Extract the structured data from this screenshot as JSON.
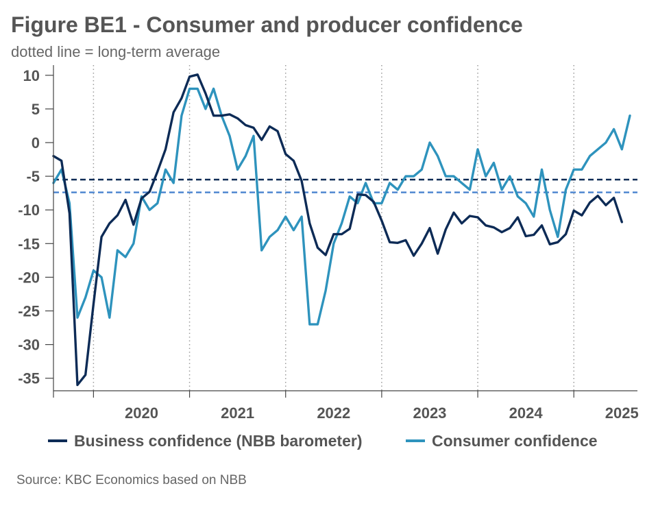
{
  "header": {
    "title": "Figure BE1 - Consumer and producer confidence",
    "subtitle": "dotted line = long-term average"
  },
  "footer": {
    "source": "Source: KBC Economics based on NBB"
  },
  "colors": {
    "business": "#0d2b56",
    "consumer": "#2e93bd",
    "business_avg": "#0d2b56",
    "consumer_avg": "#4f87d0",
    "axis": "#444444",
    "year_grid": "#999999"
  },
  "chart_data": {
    "type": "line",
    "title": "Figure BE1 - Consumer and producer confidence",
    "subtitle": "dotted line = long-term average",
    "x_axis_type": "monthly",
    "x_start": "2019-08",
    "x_end": "2025-10",
    "ylim": [
      -37,
      11
    ],
    "yticks": [
      10,
      5,
      0,
      -5,
      -10,
      -15,
      -20,
      -25,
      -30,
      -35
    ],
    "year_labels": [
      "2020",
      "2021",
      "2022",
      "2023",
      "2024",
      "2025"
    ],
    "grid": "vertical dotted lines at year boundaries",
    "legend_position": "bottom",
    "series": [
      {
        "name": "Business confidence (NBB barometer)",
        "color": "#0d2b56",
        "values": [
          -2,
          -2.7,
          -10.5,
          -36,
          -34.5,
          -24,
          -14,
          -12,
          -10.8,
          -8.5,
          -12.2,
          -8.3,
          -7.3,
          -4.3,
          -1,
          4.5,
          6.6,
          9.8,
          10.1,
          7.3,
          4,
          4,
          4.2,
          3.6,
          2.6,
          2.2,
          0.4,
          2.4,
          1.7,
          -1.7,
          -2.7,
          -5.7,
          -12,
          -15.6,
          -16.7,
          -13.6,
          -13.6,
          -12.8,
          -7.7,
          -7.8,
          -8.8,
          -11.6,
          -14.8,
          -14.9,
          -14.5,
          -16.8,
          -15,
          -12.7,
          -16.5,
          -12.9,
          -10.4,
          -12,
          -10.9,
          -11.1,
          -12.3,
          -12.6,
          -13.3,
          -12.7,
          -11.1,
          -13.9,
          -13.7,
          -12.3,
          -15.1,
          -14.8,
          -13.6,
          -10.1,
          -10.8,
          -8.9,
          -7.9,
          -9.3,
          -8.2,
          -11.8
        ],
        "long_term_average": -5.5
      },
      {
        "name": "Consumer confidence",
        "color": "#2e93bd",
        "values": [
          -6,
          -4,
          -9,
          -26,
          -23,
          -19,
          -20,
          -26,
          -16,
          -17,
          -15,
          -8,
          -10,
          -9,
          -4,
          -6,
          4,
          8,
          8,
          5,
          8,
          4,
          1,
          -4,
          -2,
          1,
          -16,
          -14,
          -13,
          -11,
          -13,
          -11,
          -27,
          -27,
          -22,
          -15,
          -12,
          -8,
          -9,
          -6,
          -9,
          -9,
          -6,
          -7,
          -5,
          -5,
          -4,
          0,
          -2,
          -5,
          -5,
          -6,
          -7,
          -1,
          -5,
          -3,
          -7,
          -5,
          -8,
          -9,
          -11,
          -4,
          -10,
          -14,
          -7,
          -4,
          -4,
          -2,
          -1,
          0,
          2,
          -1,
          4
        ],
        "long_term_average": -7.4
      }
    ]
  }
}
